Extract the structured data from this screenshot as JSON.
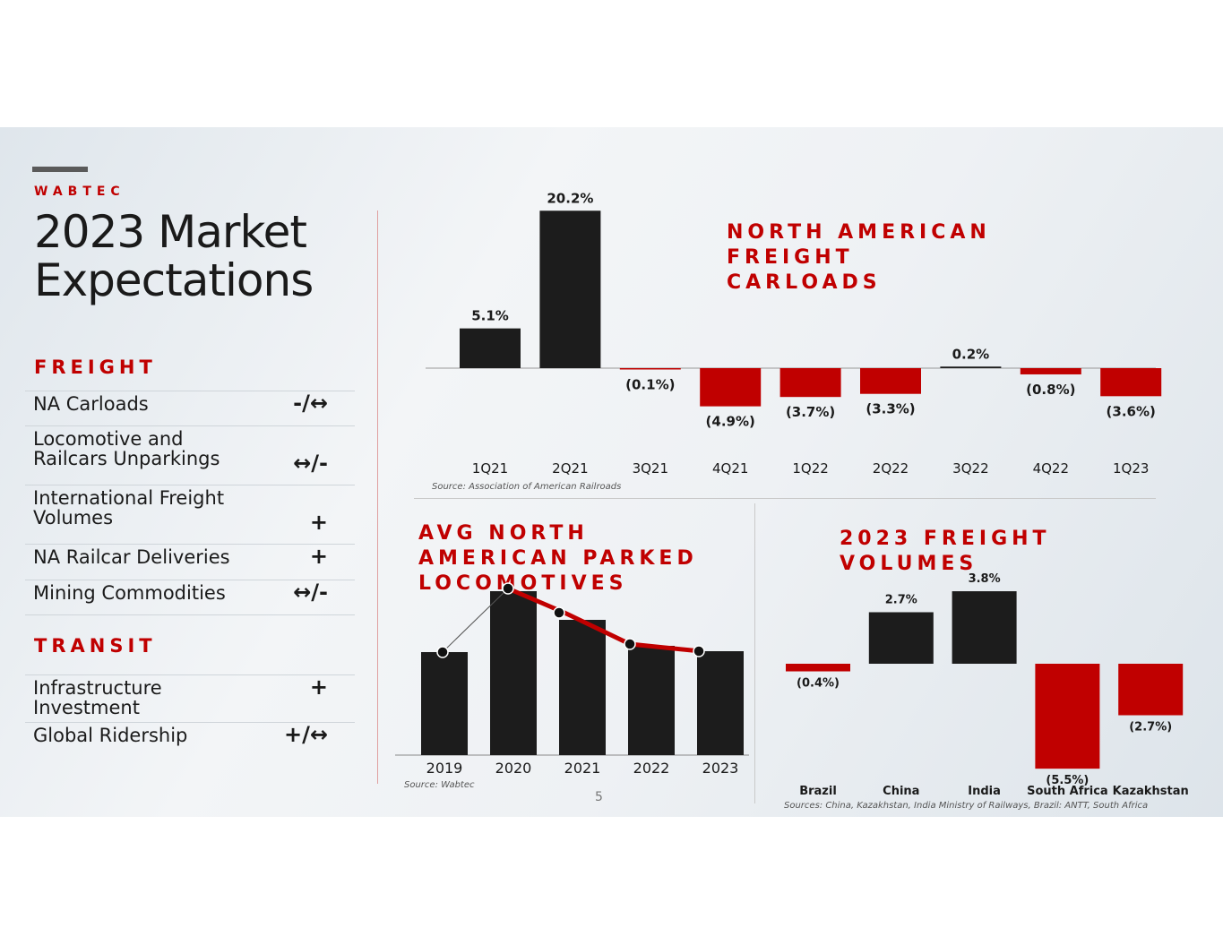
{
  "brand": "WABTEC",
  "title_line1": "2023 Market",
  "title_line2": "Expectations",
  "freight": {
    "heading": "FREIGHT",
    "rows": [
      {
        "label": "NA Carloads",
        "symbol": "-/↔"
      },
      {
        "label": "Locomotive and Railcars Unparkings",
        "symbol": "↔/-"
      },
      {
        "label": "International Freight Volumes",
        "symbol": "+"
      },
      {
        "label": "NA Railcar Deliveries",
        "symbol": "+"
      },
      {
        "label": "Mining Commodities",
        "symbol": "↔/-"
      }
    ]
  },
  "transit": {
    "heading": "TRANSIT",
    "rows": [
      {
        "label": "Infrastructure Investment",
        "symbol": "+"
      },
      {
        "label": "Global Ridership",
        "symbol": "+/↔"
      }
    ]
  },
  "page_number": "5",
  "colors": {
    "positive": "#1c1c1c",
    "negative": "#c00000"
  },
  "chart_data": [
    {
      "type": "bar",
      "title": "NORTH AMERICAN FREIGHT CARLOADS",
      "source": "Source: Association of American Railroads",
      "categories": [
        "1Q21",
        "2Q21",
        "3Q21",
        "4Q21",
        "1Q22",
        "2Q22",
        "3Q22",
        "4Q22",
        "1Q23"
      ],
      "values": [
        5.1,
        20.2,
        -0.1,
        -4.9,
        -3.7,
        -3.3,
        0.2,
        -0.8,
        -3.6
      ],
      "labels": [
        "5.1%",
        "20.2%",
        "(0.1%)",
        "(4.9%)",
        "(3.7%)",
        "(3.3%)",
        "0.2%",
        "(0.8%)",
        "(3.6%)"
      ]
    },
    {
      "type": "bar",
      "title": "AVG NORTH AMERICAN PARKED LOCOMOTIVES",
      "source": "Source: Wabtec",
      "categories": [
        "2019",
        "2020",
        "2021",
        "2022",
        "2023"
      ],
      "values": [
        115,
        183,
        151,
        122,
        116
      ],
      "note": "relative values, no axis shown; line overlay through bar tops"
    },
    {
      "type": "bar",
      "title": "2023 FREIGHT VOLUMES",
      "source": "Sources: China, Kazakhstan, India Ministry of Railways, Brazil: ANTT, South Africa",
      "categories": [
        "Brazil",
        "China",
        "India",
        "South Africa",
        "Kazakhstan"
      ],
      "values": [
        -0.4,
        2.7,
        3.8,
        -5.5,
        -2.7
      ],
      "labels": [
        "(0.4%)",
        "2.7%",
        "3.8%",
        "(5.5%)",
        "(2.7%)"
      ]
    }
  ]
}
